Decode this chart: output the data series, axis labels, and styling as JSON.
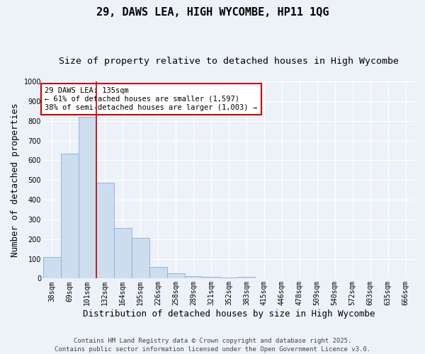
{
  "title_line1": "29, DAWS LEA, HIGH WYCOMBE, HP11 1QG",
  "title_line2": "Size of property relative to detached houses in High Wycombe",
  "xlabel": "Distribution of detached houses by size in High Wycombe",
  "ylabel": "Number of detached properties",
  "categories": [
    "38sqm",
    "69sqm",
    "101sqm",
    "132sqm",
    "164sqm",
    "195sqm",
    "226sqm",
    "258sqm",
    "289sqm",
    "321sqm",
    "352sqm",
    "383sqm",
    "415sqm",
    "446sqm",
    "478sqm",
    "509sqm",
    "540sqm",
    "572sqm",
    "603sqm",
    "635sqm",
    "666sqm"
  ],
  "values": [
    110,
    635,
    820,
    485,
    255,
    207,
    60,
    28,
    14,
    8,
    4,
    8,
    0,
    0,
    0,
    0,
    0,
    0,
    0,
    0,
    0
  ],
  "bar_color": "#ccddf0",
  "bar_edge_color": "#88aed4",
  "vline_color": "#cc0000",
  "vline_x_index": 2.5,
  "annotation_text": "29 DAWS LEA: 135sqm\n← 61% of detached houses are smaller (1,597)\n38% of semi-detached houses are larger (1,003) →",
  "annotation_box_color": "#ffffff",
  "annotation_box_edge_color": "#cc0000",
  "ylim": [
    0,
    1000
  ],
  "yticks": [
    0,
    100,
    200,
    300,
    400,
    500,
    600,
    700,
    800,
    900,
    1000
  ],
  "background_color": "#edf2f9",
  "grid_color": "#ffffff",
  "footer_text": "Contains HM Land Registry data © Crown copyright and database right 2025.\nContains public sector information licensed under the Open Government Licence v3.0.",
  "title_fontsize": 11,
  "subtitle_fontsize": 9.5,
  "axis_label_fontsize": 9,
  "tick_fontsize": 7,
  "annotation_fontsize": 7.5,
  "footer_fontsize": 6.5
}
